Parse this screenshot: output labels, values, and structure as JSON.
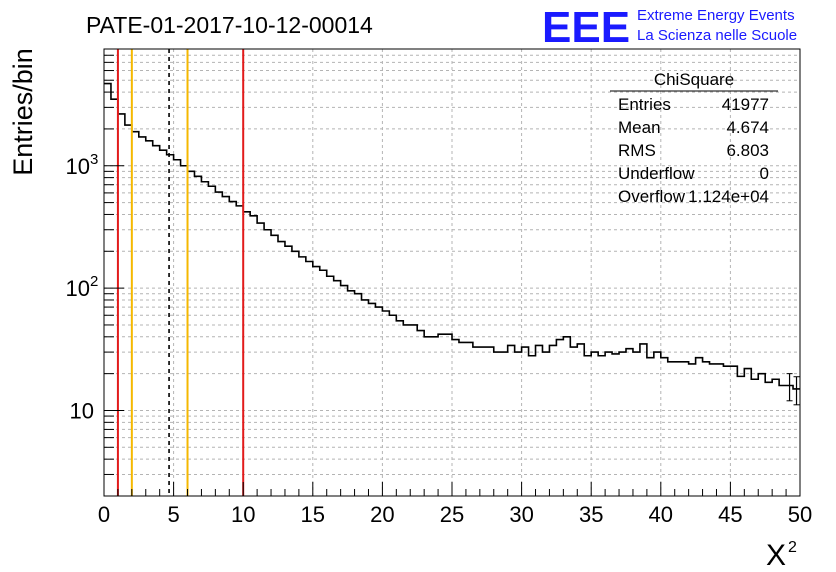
{
  "header": {
    "run_title": "PATE-01-2017-10-12-00014",
    "logo_text": "EEE",
    "logo_line1": "Extreme Energy Events",
    "logo_line2": "La Scienza nelle Scuole",
    "logo_color": "#1a1aff"
  },
  "stats_box": {
    "title": "ChiSquare",
    "rows": [
      {
        "label": "Entries",
        "value": "41977"
      },
      {
        "label": "Mean",
        "value": "4.674"
      },
      {
        "label": "RMS",
        "value": "6.803"
      },
      {
        "label": "Underflow",
        "value": "0"
      },
      {
        "label": "Overflow",
        "value": "1.124e+04"
      }
    ]
  },
  "chart_data": {
    "type": "histogram",
    "title": "",
    "xlabel": "X",
    "xlabel_sup": "2",
    "ylabel": "Entries/bin",
    "xlim": [
      0,
      50
    ],
    "ylim": [
      2,
      9000
    ],
    "yscale": "log",
    "grid": true,
    "x_ticks": [
      "0",
      "5",
      "10",
      "15",
      "20",
      "25",
      "30",
      "35",
      "40",
      "45",
      "50"
    ],
    "y_ticks": [
      {
        "value": 10,
        "label": "10"
      },
      {
        "value": 100,
        "label": "10",
        "sup": "2"
      },
      {
        "value": 1000,
        "label": "10",
        "sup": "3"
      }
    ],
    "bin_width": 0.5,
    "bin_counts": [
      4700,
      3500,
      2650,
      2150,
      1900,
      1720,
      1600,
      1460,
      1340,
      1230,
      1120,
      1000,
      900,
      820,
      740,
      680,
      610,
      560,
      510,
      470,
      420,
      390,
      340,
      300,
      270,
      240,
      220,
      200,
      180,
      165,
      150,
      140,
      125,
      115,
      105,
      95,
      90,
      80,
      75,
      70,
      65,
      60,
      54,
      50,
      50,
      45,
      40,
      40,
      42,
      42,
      38,
      36,
      36,
      33,
      33,
      33,
      30,
      30,
      34,
      30,
      33,
      28,
      34,
      30,
      34,
      38,
      40,
      33,
      35,
      28,
      30,
      28,
      30,
      29,
      30,
      32,
      30,
      35,
      27,
      30,
      27,
      25,
      25,
      25,
      24,
      27,
      25,
      24,
      24,
      23,
      23,
      19,
      22,
      18,
      20,
      17,
      18,
      16,
      16,
      15
    ],
    "reference_lines": [
      {
        "x": 1,
        "color": "#e21b1b",
        "style": "solid"
      },
      {
        "x": 2,
        "color": "#f5b800",
        "style": "solid"
      },
      {
        "x": 4.674,
        "color": "#000000",
        "style": "dashed"
      },
      {
        "x": 6,
        "color": "#f5b800",
        "style": "solid"
      },
      {
        "x": 10,
        "color": "#e21b1b",
        "style": "solid"
      }
    ]
  }
}
